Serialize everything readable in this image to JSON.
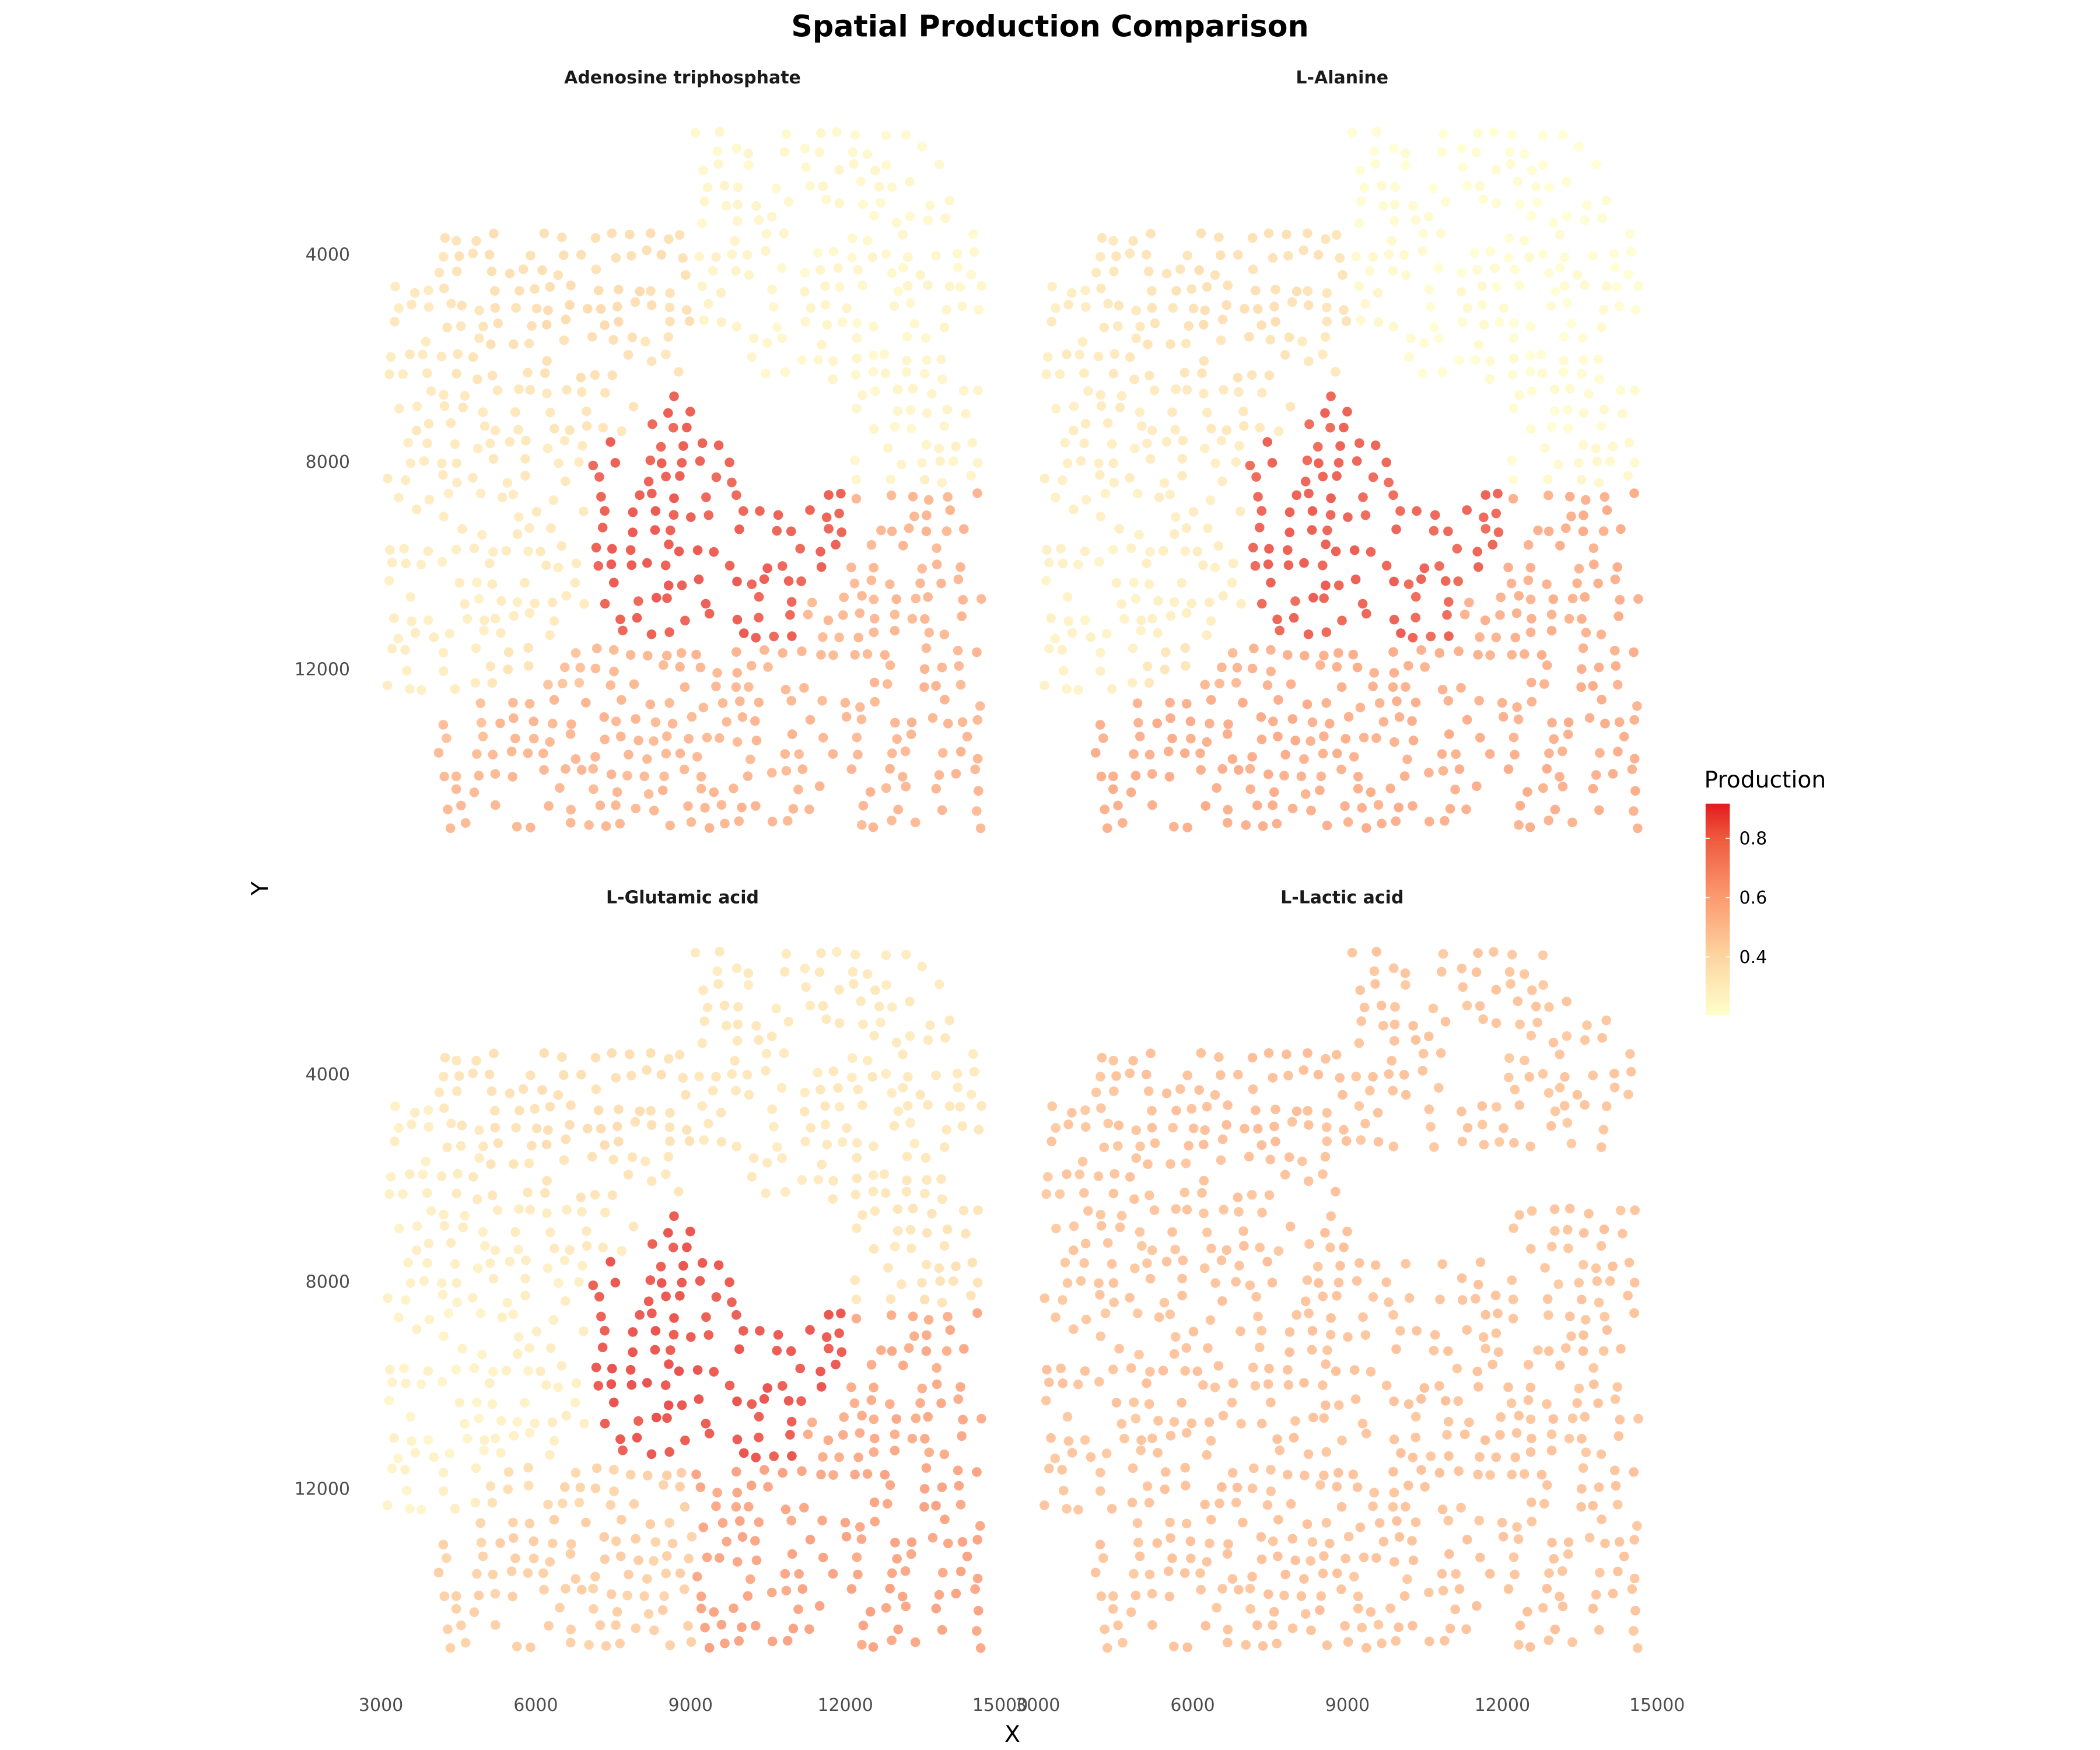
{
  "chart_data": {
    "type": "scatter",
    "title": "Spatial Production Comparison",
    "xlabel": "X",
    "ylabel": "Y",
    "x_ticks": [
      "3000",
      "6000",
      "9000",
      "12000",
      "15000"
    ],
    "y_ticks": [
      "4000",
      "8000",
      "12000"
    ],
    "xlim": [
      3000,
      15000
    ],
    "ylim": [
      15500,
      1500
    ],
    "y_axis_reversed": true,
    "grid": false,
    "colorbar": {
      "title": "Production",
      "ticks": [
        "0.4",
        "0.6",
        "0.8"
      ],
      "range": [
        0.204,
        0.917
      ],
      "colors": [
        "#ffffcc",
        "#fdd5a0",
        "#fb9a70",
        "#ee5a3e",
        "#e31a1c"
      ],
      "position": "right"
    },
    "grid_cell_x_centers": [
      3500,
      4500,
      5500,
      6500,
      7500,
      8500,
      9500,
      10500,
      11500,
      12500,
      13500,
      14500
    ],
    "grid_cell_y_centers": [
      2000,
      3000,
      4000,
      5000,
      6000,
      7000,
      8000,
      9000,
      10000,
      11000,
      12000,
      13000,
      14000,
      15000
    ],
    "panels": [
      {
        "name": "Adenosine triphosphate",
        "values": [
          [
            null,
            null,
            null,
            null,
            null,
            null,
            0.25,
            0.25,
            0.25,
            0.25,
            0.25,
            null
          ],
          [
            null,
            null,
            null,
            null,
            null,
            null,
            0.26,
            0.25,
            0.25,
            0.25,
            0.25,
            null
          ],
          [
            null,
            0.36,
            0.38,
            0.38,
            0.38,
            0.38,
            0.27,
            0.26,
            0.25,
            0.26,
            0.26,
            0.25
          ],
          [
            0.33,
            0.36,
            0.38,
            0.4,
            0.4,
            0.38,
            0.28,
            0.26,
            0.26,
            0.25,
            0.26,
            0.25
          ],
          [
            0.33,
            0.35,
            0.37,
            0.38,
            0.38,
            0.35,
            null,
            0.26,
            0.26,
            0.25,
            0.25,
            null
          ],
          [
            0.32,
            0.33,
            0.34,
            0.35,
            0.35,
            0.85,
            null,
            null,
            null,
            0.26,
            0.26,
            0.26
          ],
          [
            0.32,
            0.32,
            0.33,
            0.33,
            0.85,
            0.85,
            0.85,
            null,
            null,
            0.27,
            0.28,
            0.27
          ],
          [
            0.31,
            0.31,
            0.32,
            0.32,
            0.86,
            0.86,
            0.85,
            0.85,
            0.85,
            0.55,
            0.56,
            0.56
          ],
          [
            0.3,
            0.3,
            0.31,
            0.32,
            0.86,
            0.86,
            0.86,
            0.85,
            0.85,
            0.55,
            0.55,
            0.56
          ],
          [
            0.3,
            0.3,
            0.31,
            0.32,
            0.85,
            0.86,
            0.86,
            0.85,
            0.55,
            0.55,
            0.55,
            0.56
          ],
          [
            0.3,
            0.31,
            0.35,
            0.5,
            0.55,
            0.55,
            0.56,
            0.55,
            0.55,
            0.55,
            0.56,
            0.55
          ],
          [
            null,
            0.52,
            0.55,
            0.55,
            0.56,
            0.55,
            0.55,
            0.56,
            0.55,
            0.55,
            0.56,
            0.55
          ],
          [
            null,
            0.54,
            0.55,
            0.56,
            0.55,
            0.55,
            0.56,
            0.55,
            0.55,
            0.56,
            0.55,
            0.56
          ],
          [
            null,
            0.55,
            0.55,
            0.55,
            0.55,
            0.55,
            0.56,
            0.55,
            0.55,
            0.55,
            0.56,
            0.55
          ]
        ]
      },
      {
        "name": "L-Alanine",
        "values": [
          [
            null,
            null,
            null,
            null,
            null,
            null,
            0.22,
            0.22,
            0.22,
            0.22,
            0.22,
            null
          ],
          [
            null,
            null,
            null,
            null,
            null,
            null,
            0.23,
            0.22,
            0.22,
            0.22,
            0.22,
            null
          ],
          [
            null,
            0.34,
            0.36,
            0.37,
            0.37,
            0.36,
            0.24,
            0.23,
            0.22,
            0.23,
            0.23,
            0.22
          ],
          [
            0.31,
            0.34,
            0.36,
            0.38,
            0.38,
            0.36,
            0.25,
            0.23,
            0.23,
            0.22,
            0.23,
            0.22
          ],
          [
            0.31,
            0.33,
            0.35,
            0.36,
            0.36,
            0.33,
            null,
            0.23,
            0.23,
            0.22,
            0.22,
            null
          ],
          [
            0.3,
            0.31,
            0.32,
            0.33,
            0.33,
            0.84,
            null,
            null,
            null,
            0.23,
            0.23,
            0.23
          ],
          [
            0.3,
            0.3,
            0.31,
            0.31,
            0.84,
            0.84,
            0.84,
            null,
            null,
            0.24,
            0.25,
            0.24
          ],
          [
            0.29,
            0.29,
            0.3,
            0.3,
            0.85,
            0.85,
            0.84,
            0.84,
            0.84,
            0.58,
            0.59,
            0.59
          ],
          [
            0.28,
            0.28,
            0.29,
            0.3,
            0.85,
            0.85,
            0.85,
            0.84,
            0.84,
            0.58,
            0.58,
            0.59
          ],
          [
            0.28,
            0.28,
            0.29,
            0.3,
            0.84,
            0.85,
            0.85,
            0.84,
            0.58,
            0.58,
            0.58,
            0.59
          ],
          [
            0.28,
            0.29,
            0.34,
            0.55,
            0.58,
            0.58,
            0.59,
            0.58,
            0.58,
            0.58,
            0.59,
            0.58
          ],
          [
            null,
            0.58,
            0.59,
            0.59,
            0.6,
            0.59,
            0.58,
            0.59,
            0.58,
            0.58,
            0.59,
            0.58
          ],
          [
            null,
            0.59,
            0.59,
            0.6,
            0.59,
            0.58,
            0.59,
            0.58,
            0.58,
            0.59,
            0.58,
            0.59
          ],
          [
            null,
            0.59,
            0.58,
            0.59,
            0.59,
            0.58,
            0.59,
            0.58,
            0.58,
            0.58,
            0.59,
            0.58
          ]
        ]
      },
      {
        "name": "L-Glutamic acid",
        "values": [
          [
            null,
            null,
            null,
            null,
            null,
            null,
            0.33,
            0.33,
            0.33,
            0.33,
            0.33,
            null
          ],
          [
            null,
            null,
            null,
            null,
            null,
            null,
            0.34,
            0.33,
            0.33,
            0.33,
            0.33,
            null
          ],
          [
            null,
            0.35,
            0.37,
            0.38,
            0.38,
            0.37,
            0.34,
            0.33,
            0.33,
            0.33,
            0.34,
            0.33
          ],
          [
            0.3,
            0.34,
            0.37,
            0.39,
            0.39,
            0.37,
            0.34,
            0.33,
            0.33,
            0.33,
            0.33,
            0.33
          ],
          [
            0.3,
            0.32,
            0.35,
            0.36,
            0.36,
            0.34,
            null,
            0.33,
            0.33,
            0.33,
            0.33,
            null
          ],
          [
            0.29,
            0.3,
            0.31,
            0.32,
            0.33,
            0.87,
            null,
            null,
            null,
            0.34,
            0.35,
            0.35
          ],
          [
            0.29,
            0.29,
            0.3,
            0.3,
            0.87,
            0.87,
            0.87,
            null,
            null,
            0.35,
            0.36,
            0.36
          ],
          [
            0.28,
            0.28,
            0.29,
            0.3,
            0.87,
            0.87,
            0.87,
            0.87,
            0.87,
            0.6,
            0.6,
            0.61
          ],
          [
            0.27,
            0.27,
            0.28,
            0.29,
            0.88,
            0.88,
            0.87,
            0.87,
            0.87,
            0.6,
            0.6,
            0.61
          ],
          [
            0.27,
            0.27,
            0.28,
            0.3,
            0.87,
            0.88,
            0.87,
            0.87,
            0.6,
            0.6,
            0.6,
            0.61
          ],
          [
            0.27,
            0.3,
            0.38,
            0.42,
            0.44,
            0.45,
            0.62,
            0.63,
            0.62,
            0.62,
            0.63,
            0.62
          ],
          [
            null,
            0.44,
            0.45,
            0.45,
            0.46,
            0.45,
            0.63,
            0.62,
            0.63,
            0.62,
            0.62,
            0.63
          ],
          [
            null,
            0.45,
            0.45,
            0.46,
            0.45,
            0.45,
            0.63,
            0.62,
            0.62,
            0.63,
            0.62,
            0.63
          ],
          [
            null,
            0.45,
            0.45,
            0.45,
            0.45,
            0.45,
            0.64,
            0.63,
            0.63,
            0.62,
            0.63,
            0.62
          ]
        ]
      },
      {
        "name": "L-Lactic acid",
        "values": [
          [
            null,
            null,
            null,
            null,
            null,
            null,
            0.5,
            0.49,
            0.5,
            0.49,
            null,
            null
          ],
          [
            null,
            null,
            null,
            null,
            null,
            null,
            0.5,
            0.5,
            0.49,
            0.5,
            0.49,
            null
          ],
          [
            null,
            0.5,
            0.51,
            0.51,
            0.52,
            0.52,
            0.5,
            0.5,
            null,
            0.49,
            0.5,
            0.5
          ],
          [
            0.49,
            0.5,
            0.51,
            0.52,
            0.52,
            0.51,
            0.5,
            0.5,
            0.49,
            0.5,
            0.49,
            null
          ],
          [
            0.49,
            0.5,
            0.5,
            0.51,
            0.51,
            0.5,
            null,
            null,
            null,
            null,
            null,
            null
          ],
          [
            0.49,
            0.49,
            0.5,
            0.5,
            0.5,
            0.51,
            null,
            null,
            null,
            0.49,
            0.5,
            0.49
          ],
          [
            0.49,
            0.5,
            0.5,
            0.51,
            0.51,
            0.5,
            0.5,
            0.49,
            0.5,
            0.5,
            0.49,
            0.5
          ],
          [
            0.49,
            0.49,
            0.5,
            0.5,
            0.5,
            0.5,
            0.5,
            0.5,
            0.5,
            0.49,
            0.5,
            0.5
          ],
          [
            0.5,
            0.5,
            0.51,
            0.5,
            0.5,
            0.5,
            0.5,
            0.51,
            0.5,
            0.5,
            0.5,
            0.49
          ],
          [
            0.49,
            0.49,
            0.5,
            0.5,
            0.51,
            0.5,
            0.5,
            0.5,
            0.51,
            0.5,
            0.49,
            0.5
          ],
          [
            0.49,
            0.5,
            0.5,
            0.51,
            0.5,
            0.5,
            0.5,
            0.51,
            0.5,
            0.5,
            0.5,
            0.5
          ],
          [
            null,
            0.5,
            0.5,
            0.5,
            0.51,
            0.5,
            0.51,
            0.5,
            0.5,
            0.5,
            0.49,
            0.5
          ],
          [
            null,
            0.49,
            0.5,
            0.5,
            0.5,
            0.51,
            0.5,
            0.5,
            0.5,
            0.5,
            0.5,
            0.5
          ],
          [
            null,
            0.49,
            0.5,
            0.5,
            0.5,
            0.5,
            0.5,
            0.5,
            0.5,
            0.5,
            0.5,
            0.49
          ]
        ]
      }
    ]
  }
}
